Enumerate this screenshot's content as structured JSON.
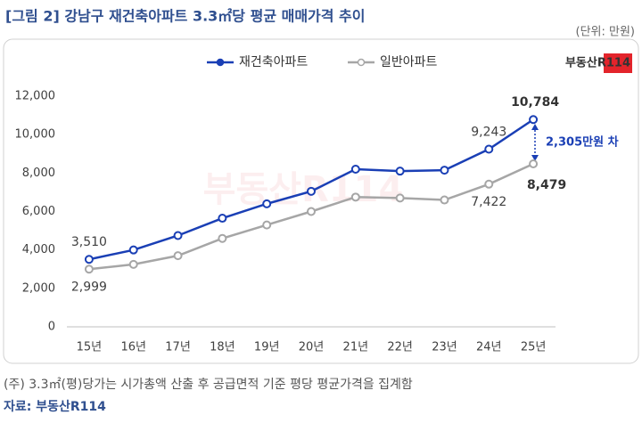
{
  "chart_data": {
    "type": "line",
    "title": "[그림 2] 강남구 재건축아파트 3.3㎡당 평균 매매가격 추이",
    "unit": "(단위: 만원)",
    "logo": "부동산R114",
    "categories": [
      "15년",
      "16년",
      "17년",
      "18년",
      "19년",
      "20년",
      "21년",
      "22년",
      "23년",
      "24년",
      "25년"
    ],
    "series": [
      {
        "name": "재건축아파트",
        "color": "#1a3fb5",
        "values": [
          3510,
          4000,
          4750,
          5650,
          6400,
          7050,
          8200,
          8100,
          8150,
          9243,
          10784
        ],
        "value_labels": [
          "3,510",
          null,
          null,
          null,
          null,
          null,
          null,
          null,
          null,
          "9,243",
          "10,784"
        ]
      },
      {
        "name": "일반아파트",
        "color": "#a6a6a6",
        "values": [
          2999,
          3250,
          3700,
          4600,
          5300,
          6000,
          6750,
          6700,
          6600,
          7422,
          8479
        ],
        "value_labels": [
          "2,999",
          null,
          null,
          null,
          null,
          null,
          null,
          null,
          null,
          "7,422",
          "8,479"
        ]
      }
    ],
    "annotation": "2,305만원 차",
    "ylim": [
      0,
      12000
    ],
    "yticks": [
      0,
      {
        "value": 2000,
        "label": "2,000"
      },
      {
        "value": 4000,
        "label": "4,000"
      },
      {
        "value": 6000,
        "label": "6,000"
      },
      {
        "value": 8000,
        "label": "8,000"
      },
      {
        "value": 10000,
        "label": "10,000"
      },
      {
        "value": 12000,
        "label": "12,000"
      }
    ],
    "grid": false,
    "legend": "top",
    "note": "(주) 3.3㎡(평)당가는 시가총액 산출 후 공급면적 기준 평당 평균가격을 집계함",
    "source": "자료: 부동산R114"
  }
}
